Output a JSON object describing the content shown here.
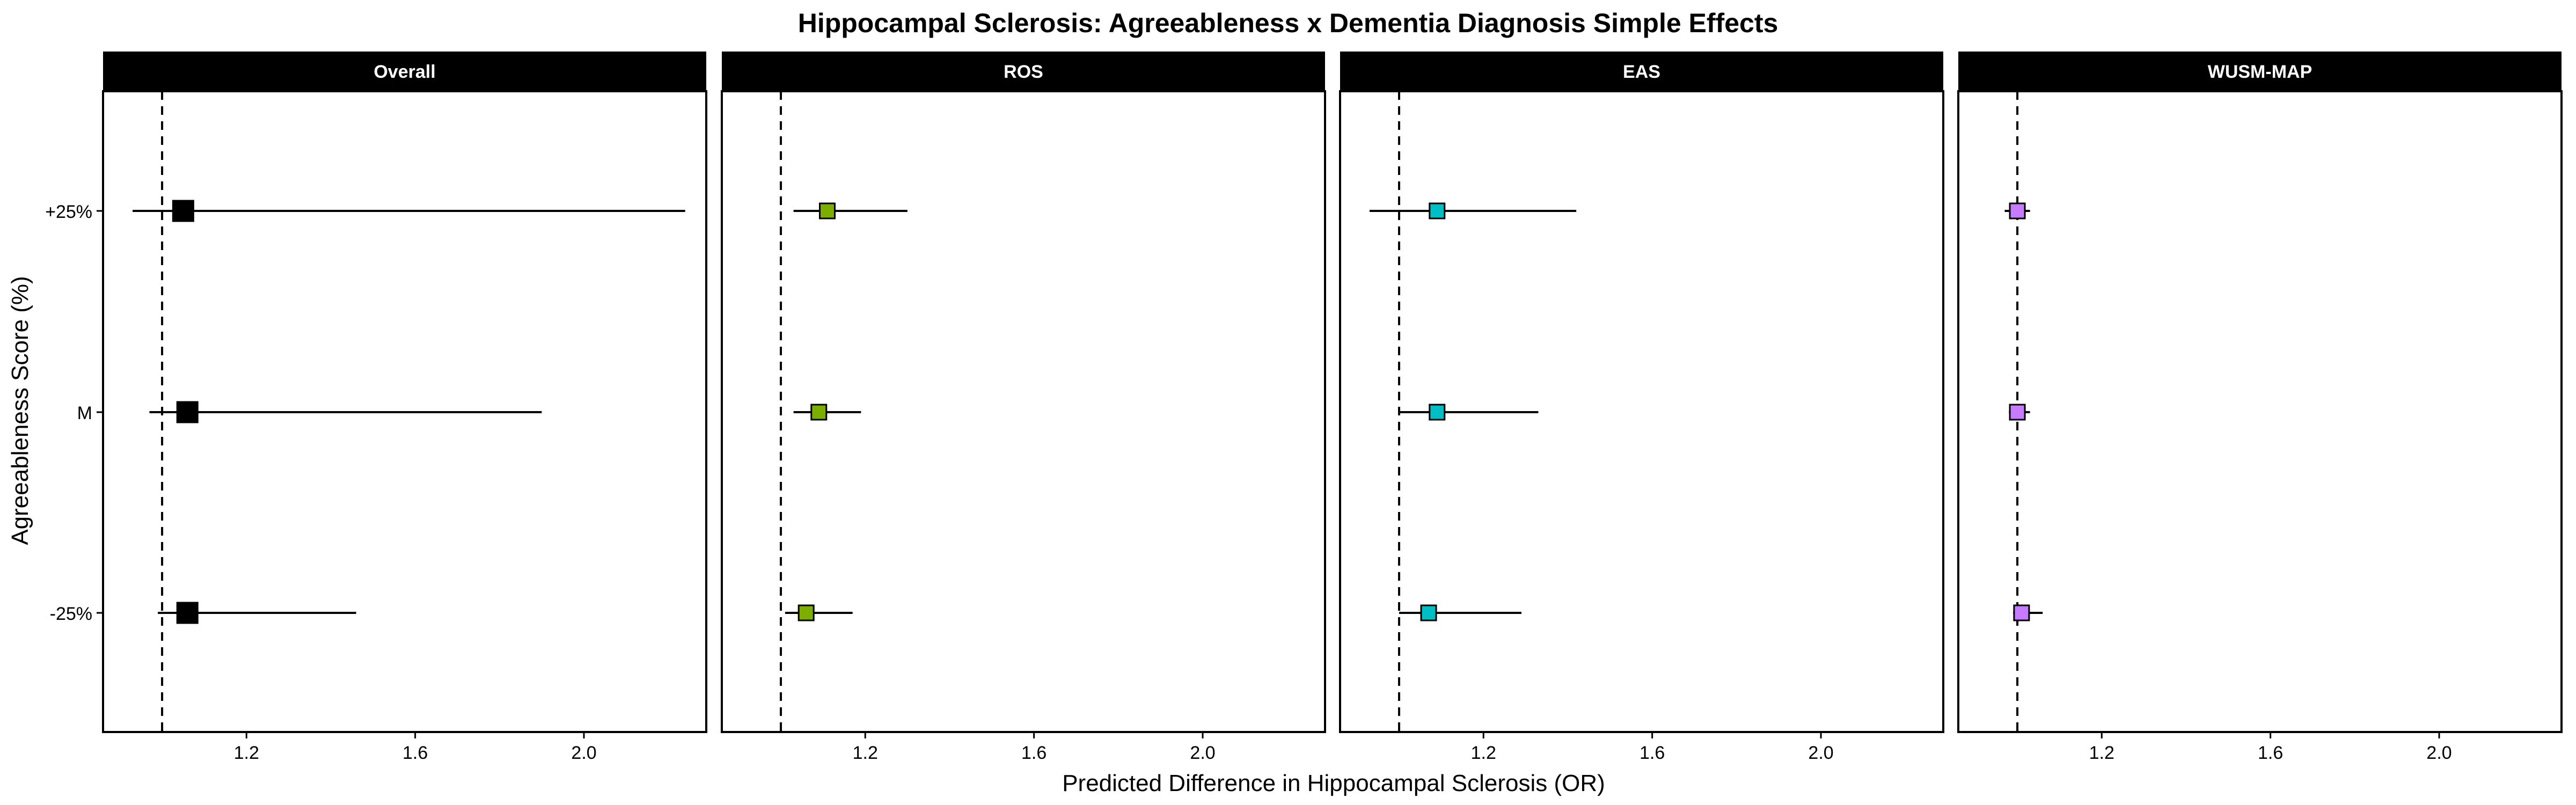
{
  "chart_data": {
    "type": "scatter",
    "subtype": "forest-plot",
    "title": "Hippocampal Sclerosis: Agreeableness x Dementia Diagnosis Simple Effects",
    "xlabel": "Predicted Difference in Hippocampal Sclerosis (OR)",
    "ylabel": "Agreeableness Score (%)",
    "xlim": [
      0.86,
      2.29
    ],
    "x_ticks": [
      1.2,
      1.6,
      2.0
    ],
    "x_tick_labels": [
      "1.2",
      "1.6",
      "2.0"
    ],
    "y_categories": [
      "+25%",
      "M",
      "-25%"
    ],
    "reference_line": 1.0,
    "grid": false,
    "panels": [
      {
        "name": "Overall",
        "color": "#000000",
        "points": [
          {
            "category": "+25%",
            "estimate": 1.05,
            "lower": 0.93,
            "upper": 2.24
          },
          {
            "category": "M",
            "estimate": 1.06,
            "lower": 0.97,
            "upper": 1.9
          },
          {
            "category": "-25%",
            "estimate": 1.06,
            "lower": 0.99,
            "upper": 1.46
          }
        ]
      },
      {
        "name": "ROS",
        "color": "#7CAE00",
        "points": [
          {
            "category": "+25%",
            "estimate": 1.11,
            "lower": 1.03,
            "upper": 1.3
          },
          {
            "category": "M",
            "estimate": 1.09,
            "lower": 1.03,
            "upper": 1.19
          },
          {
            "category": "-25%",
            "estimate": 1.06,
            "lower": 1.01,
            "upper": 1.17
          }
        ]
      },
      {
        "name": "EAS",
        "color": "#00BFC4",
        "points": [
          {
            "category": "+25%",
            "estimate": 1.09,
            "lower": 0.93,
            "upper": 1.42
          },
          {
            "category": "M",
            "estimate": 1.09,
            "lower": 1.0,
            "upper": 1.33
          },
          {
            "category": "-25%",
            "estimate": 1.07,
            "lower": 1.0,
            "upper": 1.29
          }
        ]
      },
      {
        "name": "WUSM-MAP",
        "color": "#C77CFF",
        "points": [
          {
            "category": "+25%",
            "estimate": 1.0,
            "lower": 0.97,
            "upper": 1.03
          },
          {
            "category": "M",
            "estimate": 1.0,
            "lower": 0.98,
            "upper": 1.03
          },
          {
            "category": "-25%",
            "estimate": 1.01,
            "lower": 0.99,
            "upper": 1.06
          }
        ]
      }
    ]
  }
}
